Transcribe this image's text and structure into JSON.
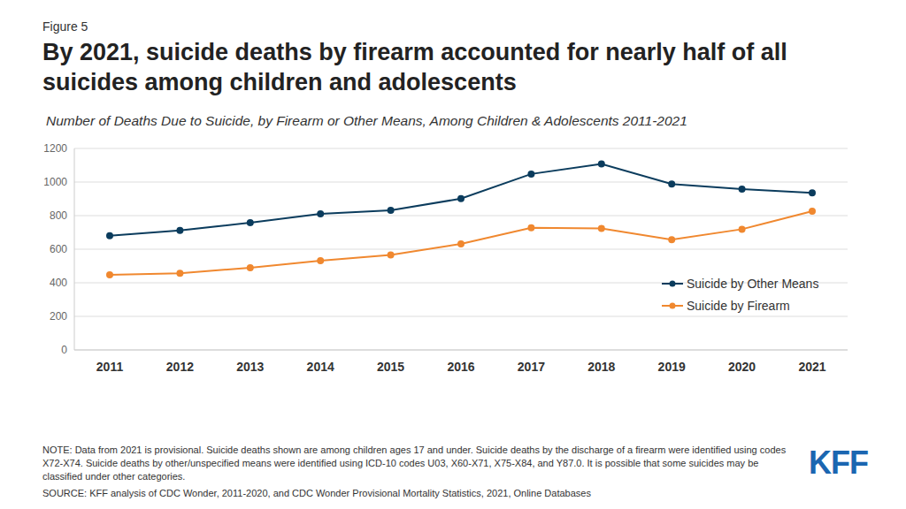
{
  "chart_data": {
    "type": "line",
    "figure_label": "Figure 5",
    "title": "By 2021, suicide deaths by firearm accounted for nearly half of all suicides among children and adolescents",
    "subtitle": "Number of Deaths Due to Suicide, by Firearm or Other Means, Among Children & Adolescents 2011-2021",
    "categories": [
      "2011",
      "2012",
      "2013",
      "2014",
      "2015",
      "2016",
      "2017",
      "2018",
      "2019",
      "2020",
      "2021"
    ],
    "series": [
      {
        "name": "Suicide by Other Means",
        "color": "#0b3c5d",
        "marker": "circle",
        "values": [
          680,
          712,
          758,
          811,
          832,
          901,
          1048,
          1108,
          988,
          958,
          936
        ]
      },
      {
        "name": "Suicide by Firearm",
        "color": "#f0882f",
        "marker": "circle",
        "values": [
          448,
          457,
          490,
          531,
          566,
          632,
          728,
          724,
          657,
          719,
          826
        ]
      }
    ],
    "ylim": [
      0,
      1200
    ],
    "yticks": [
      0,
      200,
      400,
      600,
      800,
      1000,
      1200
    ],
    "grid": true,
    "legend": "right",
    "note": "NOTE: Data from 2021 is provisional. Suicide deaths shown are among children ages 17 and under. Suicide deaths by the discharge of a firearm were identified using codes X72-X74. Suicide deaths by other/unspecified means were identified using ICD-10 codes U03, X60-X71, X75-X84, and Y87.0. It is possible that some suicides may be classified under other categories.",
    "source": "SOURCE: KFF analysis of CDC Wonder, 2011-2020, and CDC Wonder Provisional Mortality Statistics, 2021, Online Databases",
    "logo": "KFF"
  }
}
